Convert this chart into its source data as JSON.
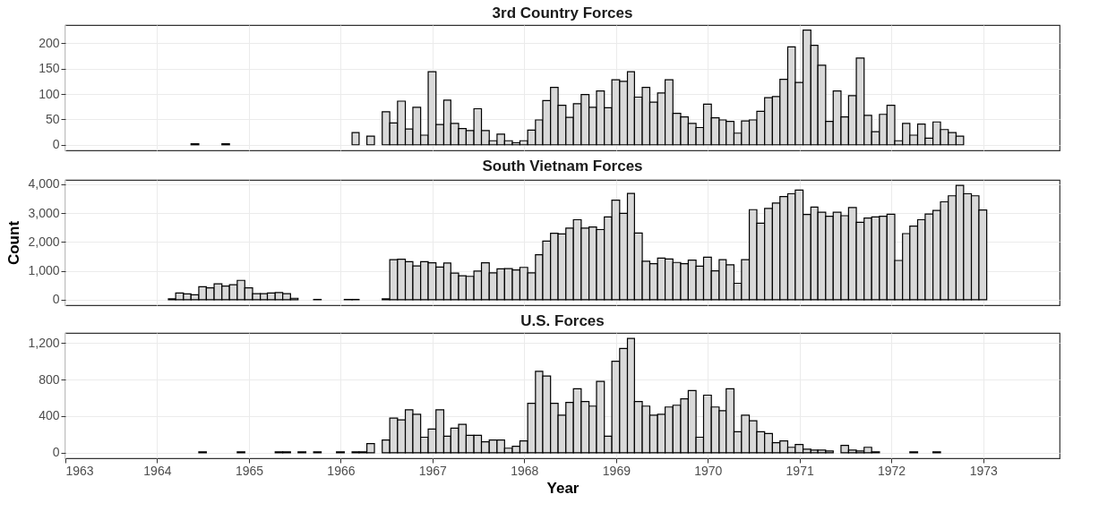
{
  "chart_data": [
    {
      "type": "histogram",
      "title": "3rd Country Forces",
      "color": "#d9d9d9",
      "grid": true,
      "tick_labels": "y",
      "bins": [
        "1964-05-15",
        "1964-06-15",
        "1964-09-15",
        "1964-10-15",
        "1966-02-15",
        "1966-03-15",
        "1966-04-15",
        "1966-05-15",
        "1966-06-15",
        "1966-07-15",
        "1966-08-15",
        "1966-09-15",
        "1966-10-15",
        "1966-11-15",
        "1966-12-15",
        "1967-01-15",
        "1967-02-15",
        "1967-03-15",
        "1967-04-15",
        "1967-05-15",
        "1967-06-15",
        "1967-07-15",
        "1967-08-15",
        "1967-09-15",
        "1967-10-15",
        "1967-11-15",
        "1967-12-15",
        "1968-01-15",
        "1968-02-15",
        "1968-03-15",
        "1968-04-15",
        "1968-05-15",
        "1968-06-15",
        "1968-07-15",
        "1968-08-15",
        "1968-09-15",
        "1968-10-15",
        "1968-11-15",
        "1968-12-15",
        "1969-01-15",
        "1969-02-15",
        "1969-03-15",
        "1969-04-15",
        "1969-05-15",
        "1969-06-15",
        "1969-07-15",
        "1969-08-15",
        "1969-09-15",
        "1969-10-15",
        "1969-11-15",
        "1969-12-15",
        "1970-01-15",
        "1970-02-15",
        "1970-03-15",
        "1970-04-15",
        "1970-05-15",
        "1970-06-15",
        "1970-07-15",
        "1970-08-15",
        "1970-09-15",
        "1970-10-15",
        "1970-11-15",
        "1970-12-15",
        "1971-01-15",
        "1971-02-15",
        "1971-03-15",
        "1971-04-15",
        "1971-05-15",
        "1971-06-15",
        "1971-07-15",
        "1971-08-15",
        "1971-09-15",
        "1971-10-15",
        "1971-11-15",
        "1971-12-15",
        "1972-01-15",
        "1972-02-15",
        "1972-03-15",
        "1972-04-15",
        "1972-05-15",
        "1972-06-15",
        "1972-07-15",
        "1972-08-15",
        "1972-09-15",
        "1972-10-15"
      ],
      "values": [
        2,
        null,
        2,
        null,
        24,
        null,
        17,
        null,
        65,
        43,
        86,
        31,
        74,
        19,
        144,
        40,
        88,
        42,
        32,
        28,
        71,
        28,
        8,
        21,
        8,
        4,
        8,
        29,
        49,
        87,
        113,
        78,
        54,
        81,
        99,
        74,
        106,
        73,
        128,
        125,
        144,
        94,
        113,
        84,
        102,
        128,
        62,
        55,
        42,
        34,
        80,
        53,
        49,
        46,
        23,
        47,
        49,
        66,
        93,
        95,
        129,
        193,
        123,
        226,
        196,
        157,
        46,
        106,
        55,
        97,
        171,
        58,
        26,
        60,
        78,
        8,
        42,
        19,
        41,
        13,
        45,
        30,
        24,
        17
      ],
      "xlim": [
        "1963",
        "1973-11"
      ],
      "xticks": [
        "1963",
        "1964",
        "1965",
        "1966",
        "1967",
        "1968",
        "1969",
        "1970",
        "1971",
        "1972",
        "1973"
      ],
      "ylim": [
        -11,
        236
      ],
      "yticks": [
        0,
        50,
        100,
        150,
        200
      ]
    },
    {
      "type": "histogram",
      "title": "South Vietnam Forces",
      "ylabel": "Count",
      "color": "#d9d9d9",
      "grid": true,
      "tick_labels": "y",
      "bins": [
        "1964-02-15",
        "1964-03-15",
        "1964-04-15",
        "1964-05-15",
        "1964-06-15",
        "1964-07-15",
        "1964-08-15",
        "1964-09-15",
        "1964-10-15",
        "1964-11-15",
        "1964-12-15",
        "1965-01-15",
        "1965-02-15",
        "1965-03-15",
        "1965-04-15",
        "1965-05-15",
        "1965-06-15",
        "1965-07-15",
        "1965-09-15",
        "1965-10-15",
        "1966-01-15",
        "1966-02-15",
        "1966-03-15",
        "1966-06-15",
        "1966-07-15",
        "1966-08-15",
        "1966-09-15",
        "1966-10-15",
        "1966-11-15",
        "1966-12-15",
        "1967-01-15",
        "1967-02-15",
        "1967-03-15",
        "1967-04-15",
        "1967-05-15",
        "1967-06-15",
        "1967-07-15",
        "1967-08-15",
        "1967-09-15",
        "1967-10-15",
        "1967-11-15",
        "1967-12-15",
        "1968-01-15",
        "1968-02-15",
        "1968-03-15",
        "1968-04-15",
        "1968-05-15",
        "1968-06-15",
        "1968-07-15",
        "1968-08-15",
        "1968-09-15",
        "1968-10-15",
        "1968-11-15",
        "1968-12-15",
        "1969-01-15",
        "1969-02-15",
        "1969-03-15",
        "1969-04-15",
        "1969-05-15",
        "1969-06-15",
        "1969-07-15",
        "1969-08-15",
        "1969-09-15",
        "1969-10-15",
        "1969-11-15",
        "1969-12-15",
        "1970-01-15",
        "1970-02-15",
        "1970-03-15",
        "1970-04-15",
        "1970-05-15",
        "1970-06-15",
        "1970-07-15",
        "1970-08-15",
        "1970-09-15",
        "1970-10-15",
        "1970-11-15",
        "1970-12-15",
        "1971-01-15",
        "1971-02-15",
        "1971-03-15",
        "1971-04-15",
        "1971-05-15",
        "1971-06-15",
        "1971-07-15",
        "1971-08-15",
        "1971-09-15",
        "1971-10-15",
        "1971-11-15",
        "1971-12-15",
        "1972-01-15",
        "1972-02-15",
        "1972-03-15",
        "1972-04-15",
        "1972-05-15",
        "1972-06-15",
        "1972-07-15",
        "1972-08-15",
        "1972-09-15",
        "1972-10-15",
        "1972-11-15",
        "1972-12-15",
        "1973-01-15"
      ],
      "values": [
        30,
        230,
        200,
        170,
        450,
        410,
        550,
        470,
        520,
        670,
        410,
        210,
        210,
        230,
        250,
        210,
        50,
        null,
        10,
        null,
        10,
        10,
        null,
        30,
        1390,
        1400,
        1320,
        1170,
        1320,
        1280,
        1130,
        1270,
        920,
        830,
        810,
        990,
        1280,
        930,
        1070,
        1080,
        1030,
        1120,
        930,
        1560,
        2030,
        2300,
        2280,
        2480,
        2770,
        2480,
        2520,
        2430,
        2870,
        3450,
        2990,
        3680,
        2310,
        1330,
        1250,
        1440,
        1410,
        1290,
        1250,
        1370,
        1160,
        1470,
        1000,
        1390,
        1210,
        570,
        1390,
        3120,
        2650,
        3160,
        3350,
        3570,
        3670,
        3800,
        2950,
        3210,
        3030,
        2890,
        3030,
        2910,
        3190,
        2680,
        2830,
        2870,
        2890,
        2960,
        1360,
        2290,
        2550,
        2770,
        2970,
        3090,
        3390,
        3600,
        3960,
        3670,
        3600,
        3110
      ],
      "xlim": [
        "1963",
        "1973-11"
      ],
      "xticks": [
        "1963",
        "1964",
        "1965",
        "1966",
        "1967",
        "1968",
        "1969",
        "1970",
        "1971",
        "1972",
        "1973"
      ],
      "ylim": [
        -190,
        4150
      ],
      "yticks": [
        0,
        {
          "value": 1000,
          "label": "1,000"
        },
        {
          "value": 2000,
          "label": "2,000"
        },
        {
          "value": 3000,
          "label": "3,000"
        },
        {
          "value": 4000,
          "label": "4,000"
        }
      ]
    },
    {
      "type": "histogram",
      "title": "U.S. Forces",
      "xlabel": "Year",
      "color": "#d9d9d9",
      "grid": true,
      "bins": [
        "1964-06-15",
        "1964-07-15",
        "1964-11-15",
        "1964-12-15",
        "1965-04-15",
        "1965-05-15",
        "1965-06-15",
        "1965-07-15",
        "1965-08-15",
        "1965-09-15",
        "1965-10-15",
        "1965-12-15",
        "1966-01-15",
        "1966-02-15",
        "1966-03-15",
        "1966-04-15",
        "1966-05-15",
        "1966-06-15",
        "1966-07-15",
        "1966-08-15",
        "1966-09-15",
        "1966-10-15",
        "1966-11-15",
        "1966-12-15",
        "1967-01-15",
        "1967-02-15",
        "1967-03-15",
        "1967-04-15",
        "1967-05-15",
        "1967-06-15",
        "1967-07-15",
        "1967-08-15",
        "1967-09-15",
        "1967-10-15",
        "1967-11-15",
        "1967-12-15",
        "1968-01-15",
        "1968-02-15",
        "1968-03-15",
        "1968-04-15",
        "1968-05-15",
        "1968-06-15",
        "1968-07-15",
        "1968-08-15",
        "1968-09-15",
        "1968-10-15",
        "1968-11-15",
        "1968-12-15",
        "1969-01-15",
        "1969-02-15",
        "1969-03-15",
        "1969-04-15",
        "1969-05-15",
        "1969-06-15",
        "1969-07-15",
        "1969-08-15",
        "1969-09-15",
        "1969-10-15",
        "1969-11-15",
        "1969-12-15",
        "1970-01-15",
        "1970-02-15",
        "1970-03-15",
        "1970-04-15",
        "1970-05-15",
        "1970-06-15",
        "1970-07-15",
        "1970-08-15",
        "1970-09-15",
        "1970-10-15",
        "1970-11-15",
        "1970-12-15",
        "1971-01-15",
        "1971-02-15",
        "1971-03-15",
        "1971-04-15",
        "1971-05-15",
        "1971-06-15",
        "1971-07-15",
        "1971-08-15",
        "1971-09-15",
        "1971-10-15",
        "1971-11-15",
        "1972-03-15",
        "1972-04-15",
        "1972-06-15",
        "1972-07-15"
      ],
      "values": [
        10,
        null,
        10,
        null,
        10,
        10,
        null,
        10,
        null,
        10,
        null,
        10,
        null,
        10,
        10,
        100,
        null,
        140,
        380,
        360,
        470,
        420,
        170,
        260,
        470,
        180,
        270,
        310,
        190,
        190,
        120,
        140,
        140,
        50,
        70,
        130,
        540,
        890,
        840,
        540,
        410,
        550,
        700,
        560,
        510,
        780,
        180,
        1000,
        1140,
        1250,
        560,
        510,
        410,
        420,
        500,
        520,
        590,
        680,
        170,
        630,
        500,
        460,
        700,
        230,
        410,
        350,
        230,
        210,
        110,
        130,
        60,
        90,
        40,
        30,
        30,
        20,
        null,
        80,
        30,
        20,
        60,
        10,
        null,
        10,
        null,
        10
      ],
      "xlim": [
        "1963",
        "1973-11"
      ],
      "xticks": [
        "1963",
        "1964",
        "1965",
        "1966",
        "1967",
        "1968",
        "1969",
        "1970",
        "1971",
        "1972",
        "1973"
      ],
      "ylim": [
        -60,
        1310
      ],
      "yticks": [
        0,
        400,
        800,
        {
          "value": 1200,
          "label": "1,200"
        }
      ]
    }
  ]
}
